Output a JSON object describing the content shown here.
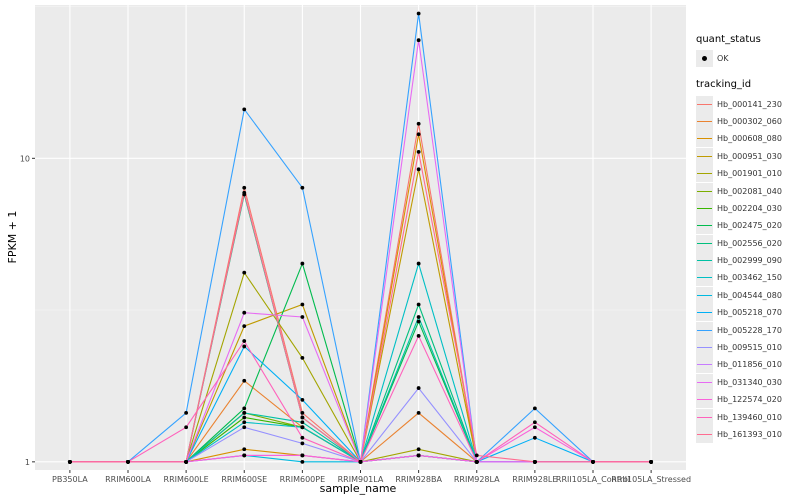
{
  "chart_data": {
    "type": "line",
    "title": "",
    "xlabel": "sample_name",
    "ylabel": "FPKM + 1",
    "y_scale": "log10",
    "ylim": [
      0.94,
      32
    ],
    "y_ticks": [
      1,
      10
    ],
    "y_tick_labels": [
      "1",
      "10"
    ],
    "categories": [
      "PB350LA",
      "RRIM600LA",
      "RRIM600LE",
      "RRIM600SE",
      "RRIM600PE",
      "RRIM901LA",
      "RRIM928BA",
      "RRIM928LA",
      "RRIM928LE",
      "RRII105LA_Control",
      "RRII105LA_Stressed"
    ],
    "point_legend": {
      "title": "quant_status",
      "items": [
        "OK"
      ]
    },
    "series_legend_title": "tracking_id",
    "series": [
      {
        "name": "Hb_000141_230",
        "color": "#F8766D",
        "values": [
          1,
          1,
          1.0,
          8.0,
          1.45,
          1,
          13.0,
          1,
          1,
          1,
          1
        ]
      },
      {
        "name": "Hb_000302_060",
        "color": "#EA8331",
        "values": [
          1,
          1,
          1.0,
          1.85,
          1.3,
          1,
          1.45,
          1,
          1,
          1,
          1
        ]
      },
      {
        "name": "Hb_000608_080",
        "color": "#D89000",
        "values": [
          1,
          1,
          1.0,
          1.1,
          1.05,
          1,
          12.0,
          1,
          1,
          1,
          1
        ]
      },
      {
        "name": "Hb_000951_030",
        "color": "#C09B00",
        "values": [
          1,
          1,
          1.0,
          2.8,
          3.3,
          1,
          9.2,
          1,
          1,
          1,
          1
        ]
      },
      {
        "name": "Hb_001901_010",
        "color": "#A3A500",
        "values": [
          1,
          1,
          1.0,
          4.2,
          2.2,
          1,
          1.1,
          1,
          1,
          1,
          1
        ]
      },
      {
        "name": "Hb_002081_040",
        "color": "#7CAE00",
        "values": [
          1,
          1,
          1.0,
          1.45,
          1.3,
          1,
          1.05,
          1,
          1,
          1,
          1
        ]
      },
      {
        "name": "Hb_002204_030",
        "color": "#39B600",
        "values": [
          1,
          1,
          1.0,
          1.4,
          1.3,
          1,
          1.05,
          1,
          1,
          1,
          1
        ]
      },
      {
        "name": "Hb_002475_020",
        "color": "#00BB4E",
        "values": [
          1,
          1,
          1.0,
          1.5,
          4.5,
          1,
          2.9,
          1,
          1,
          1,
          1
        ]
      },
      {
        "name": "Hb_002556_020",
        "color": "#00BF7D",
        "values": [
          1,
          1,
          1.0,
          7.6,
          1.4,
          1,
          3.3,
          1,
          1,
          1,
          1
        ]
      },
      {
        "name": "Hb_002999_090",
        "color": "#00C1A3",
        "values": [
          1,
          1,
          1.0,
          1.45,
          1.35,
          1,
          3.0,
          1,
          1,
          1,
          1
        ]
      },
      {
        "name": "Hb_003462_150",
        "color": "#00BFC4",
        "values": [
          1,
          1,
          1.0,
          1.35,
          1.3,
          1,
          4.5,
          1,
          1,
          1,
          1
        ]
      },
      {
        "name": "Hb_004544_080",
        "color": "#00BAE0",
        "values": [
          1,
          1,
          1.0,
          1.05,
          1.0,
          1,
          1.05,
          1,
          1,
          1,
          1
        ]
      },
      {
        "name": "Hb_005218_070",
        "color": "#00B0F6",
        "values": [
          1,
          1,
          1.0,
          2.4,
          1.6,
          1,
          1.05,
          1,
          1.2,
          1,
          1
        ]
      },
      {
        "name": "Hb_005228_170",
        "color": "#35A2FF",
        "values": [
          1,
          1,
          1.45,
          14.5,
          8.0,
          1,
          30.0,
          1,
          1.5,
          1,
          1
        ]
      },
      {
        "name": "Hb_009515_010",
        "color": "#9590FF",
        "values": [
          1,
          1,
          1.0,
          1.3,
          1.15,
          1,
          1.75,
          1,
          1,
          1,
          1
        ]
      },
      {
        "name": "Hb_011856_010",
        "color": "#C77CFF",
        "values": [
          1,
          1,
          1.0,
          1.05,
          1.05,
          1,
          1.05,
          1,
          1,
          1,
          1
        ]
      },
      {
        "name": "Hb_031340_030",
        "color": "#E76BF3",
        "values": [
          1,
          1,
          1.0,
          3.1,
          3.0,
          1,
          24.5,
          1,
          1,
          1,
          1
        ]
      },
      {
        "name": "Hb_122574_020",
        "color": "#FA62DB",
        "values": [
          1,
          1,
          1.0,
          1.05,
          1.05,
          1,
          1.05,
          1,
          1.3,
          1,
          1
        ]
      },
      {
        "name": "Hb_139460_010",
        "color": "#FF62BC",
        "values": [
          1,
          1,
          1.3,
          2.5,
          1.2,
          1,
          2.6,
          1,
          1.35,
          1,
          1
        ]
      },
      {
        "name": "Hb_161393_010",
        "color": "#FF6C91",
        "values": [
          1,
          1,
          1.0,
          7.7,
          1.4,
          1,
          10.5,
          1.05,
          1,
          1,
          1
        ]
      }
    ]
  }
}
